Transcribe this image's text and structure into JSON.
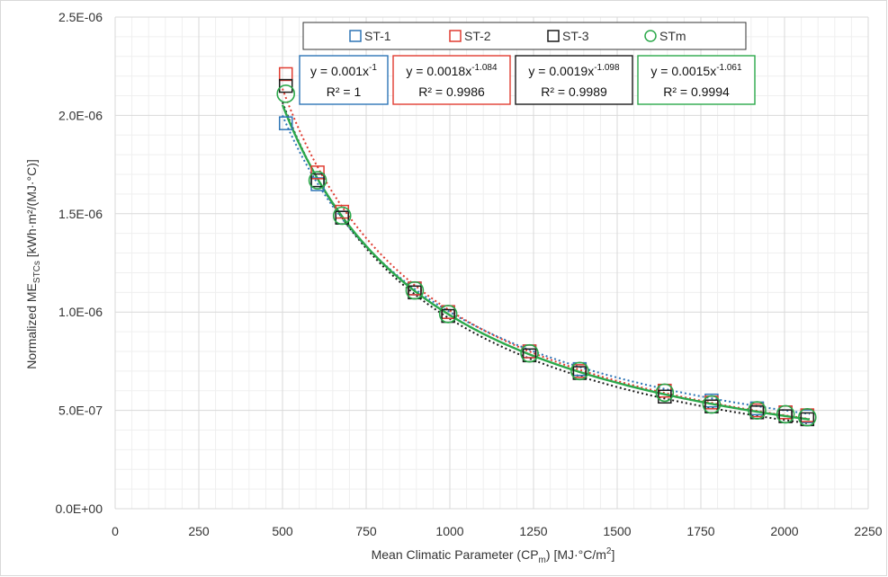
{
  "chart_data": {
    "type": "scatter",
    "xlabel": {
      "pre": "Mean Climatic Parameter (CP",
      "sub": "m",
      "post": ") [MJ·°C/m",
      "sup": "2",
      "end": "]"
    },
    "ylabel": {
      "pre": "Normalized ME",
      "sub": "STCs",
      "post": " [kWh·m²/(MJ·°C)]"
    },
    "xlim": [
      0,
      2250
    ],
    "ylim": [
      0,
      2.5e-06
    ],
    "x_ticks": [
      "0",
      "250",
      "500",
      "750",
      "1000",
      "1250",
      "1500",
      "1750",
      "2000",
      "2250"
    ],
    "y_ticks": [
      "0.0E+00",
      "5.0E-07",
      "1.0E-06",
      "1.5E-06",
      "2.0E-06",
      "2.5E-06"
    ],
    "grid": true,
    "legend_position": "top",
    "series": [
      {
        "name": "ST-1",
        "marker": "square",
        "color": "#2E75B6",
        "x": [
          510,
          605,
          678,
          895,
          995,
          1238,
          1388,
          1642,
          1782,
          1918,
          2003,
          2068
        ],
        "y": [
          1.96e-06,
          1.65e-06,
          1.48e-06,
          1.12e-06,
          1e-06,
          8e-07,
          7.1e-07,
          6e-07,
          5.5e-07,
          5.1e-07,
          4.9e-07,
          4.7e-07
        ],
        "trend": {
          "a": 0.001,
          "b": 1.0
        },
        "equation": {
          "base": "y = 0.001x",
          "exp": "-1",
          "r2": "R² = 1"
        }
      },
      {
        "name": "ST-2",
        "marker": "square",
        "color": "#E03C31",
        "x": [
          510,
          605,
          678,
          895,
          995,
          1238,
          1388,
          1642,
          1782,
          1918,
          2003,
          2068
        ],
        "y": [
          2.21e-06,
          1.71e-06,
          1.51e-06,
          1.12e-06,
          1e-06,
          8e-07,
          7e-07,
          6e-07,
          5.4e-07,
          5e-07,
          4.9e-07,
          4.75e-07
        ],
        "trend": {
          "a": 0.0018,
          "b": 1.084
        },
        "equation": {
          "base": "y = 0.0018x",
          "exp": "-1.084",
          "r2": "R² = 0.9986"
        }
      },
      {
        "name": "ST-3",
        "marker": "square",
        "color": "#1A1A1A",
        "x": [
          510,
          605,
          678,
          895,
          995,
          1238,
          1388,
          1642,
          1782,
          1918,
          2003,
          2068
        ],
        "y": [
          2.15e-06,
          1.67e-06,
          1.48e-06,
          1.1e-06,
          9.8e-07,
          7.8e-07,
          6.9e-07,
          5.7e-07,
          5.2e-07,
          4.9e-07,
          4.7e-07,
          4.55e-07
        ],
        "trend": {
          "a": 0.0019,
          "b": 1.098
        },
        "equation": {
          "base": "y = 0.0019x",
          "exp": "-1.098",
          "r2": "R² = 0.9989"
        }
      },
      {
        "name": "STm",
        "marker": "circle",
        "color": "#2BA84A",
        "x": [
          510,
          605,
          678,
          895,
          995,
          1238,
          1388,
          1642,
          1782,
          1918,
          2003,
          2068
        ],
        "y": [
          2.11e-06,
          1.67e-06,
          1.49e-06,
          1.11e-06,
          9.9e-07,
          7.9e-07,
          7e-07,
          5.9e-07,
          5.3e-07,
          5e-07,
          4.8e-07,
          4.65e-07
        ],
        "trend": {
          "a": 0.0015,
          "b": 1.061
        },
        "equation": {
          "base": "y = 0.0015x",
          "exp": "-1.061",
          "r2": "R² = 0.9994"
        }
      }
    ]
  }
}
